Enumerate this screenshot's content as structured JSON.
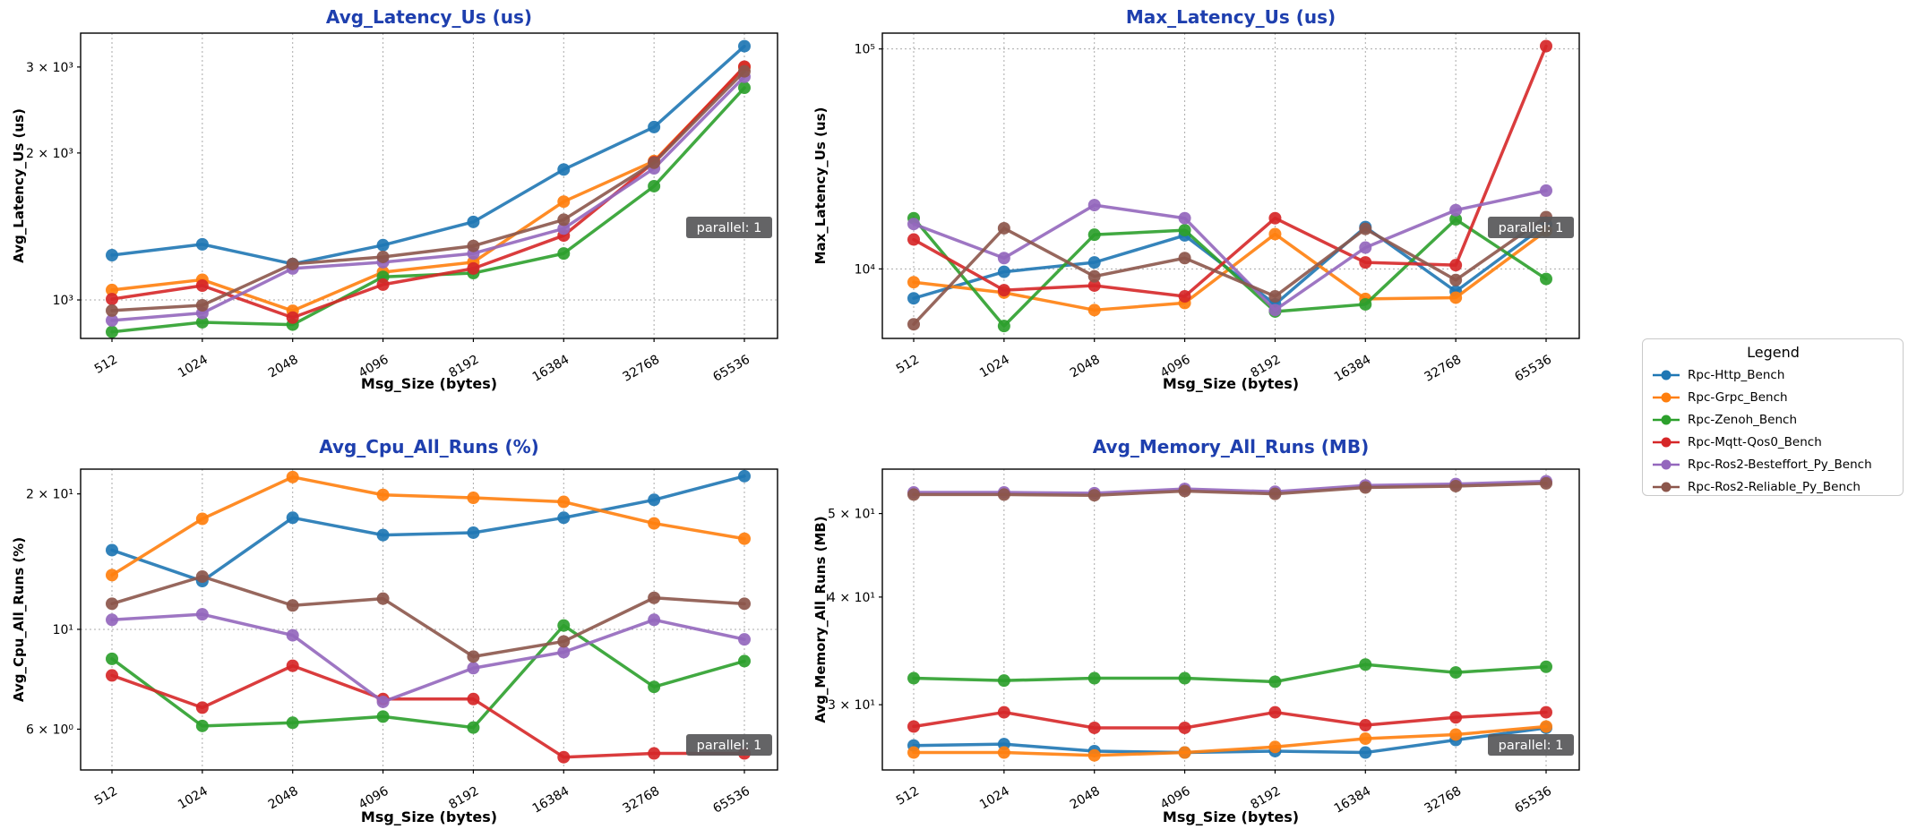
{
  "figure": {
    "background": "#ffffff",
    "title_color": "#1e3fae",
    "grid_color": "#aaaaaa",
    "spine_color": "#000000",
    "badge_bg": "#58585a",
    "badge_text_color": "#ffffff"
  },
  "legend": {
    "title": "Legend"
  },
  "annotation": {
    "label": "parallel: 1"
  },
  "series": [
    {
      "name": "Rpc-Http_Bench",
      "color": "#1f77b4"
    },
    {
      "name": "Rpc-Grpc_Bench",
      "color": "#ff7f0e"
    },
    {
      "name": "Rpc-Zenoh_Bench",
      "color": "#2ca02c"
    },
    {
      "name": "Rpc-Mqtt-Qos0_Bench",
      "color": "#d62728"
    },
    {
      "name": "Rpc-Ros2-Besteffort_Py_Bench",
      "color": "#9467bd"
    },
    {
      "name": "Rpc-Ros2-Reliable_Py_Bench",
      "color": "#8c564b"
    }
  ],
  "chart_data": [
    {
      "type": "line",
      "yscale": "log",
      "title": "Avg_Latency_Us  (us)",
      "ylabel": "Avg_Latency_Us (us)",
      "xlabel": "Msg_Size (bytes)",
      "categories": [
        "512",
        "1024",
        "2048",
        "4096",
        "8192",
        "16384",
        "32768",
        "65536"
      ],
      "ylim": [
        834,
        3520
      ],
      "yticks": [
        {
          "v": 1000,
          "label": "10³",
          "grid": true
        },
        {
          "v": 2000,
          "label": "2 × 10³",
          "grid": false
        },
        {
          "v": 3000,
          "label": "3 × 10³",
          "grid": false
        }
      ],
      "series": [
        {
          "name": "Rpc-Http_Bench",
          "values": [
            1235,
            1300,
            1185,
            1295,
            1445,
            1850,
            2260,
            3310
          ]
        },
        {
          "name": "Rpc-Grpc_Bench",
          "values": [
            1048,
            1100,
            950,
            1140,
            1195,
            1590,
            1925,
            2995
          ]
        },
        {
          "name": "Rpc-Zenoh_Bench",
          "values": [
            860,
            900,
            890,
            1115,
            1135,
            1245,
            1710,
            2720
          ]
        },
        {
          "name": "Rpc-Mqtt-Qos0_Bench",
          "values": [
            1004,
            1070,
            920,
            1075,
            1160,
            1355,
            1915,
            3005
          ]
        },
        {
          "name": "Rpc-Ros2-Besteffort_Py_Bench",
          "values": [
            908,
            940,
            1160,
            1195,
            1245,
            1400,
            1860,
            2865
          ]
        },
        {
          "name": "Rpc-Ros2-Reliable_Py_Bench",
          "values": [
            951,
            975,
            1185,
            1225,
            1290,
            1460,
            1910,
            2940
          ]
        }
      ]
    },
    {
      "type": "line",
      "yscale": "log",
      "title": "Max_Latency_Us  (us)",
      "ylabel": "Max_Latency_Us (us)",
      "xlabel": "Msg_Size (bytes)",
      "categories": [
        "512",
        "1024",
        "2048",
        "4096",
        "8192",
        "16384",
        "32768",
        "65536"
      ],
      "ylim": [
        4830,
        118000
      ],
      "yticks": [
        {
          "v": 10000,
          "label": "10⁴",
          "grid": true
        },
        {
          "v": 100000,
          "label": "10⁵",
          "grid": true
        }
      ],
      "series": [
        {
          "name": "Rpc-Http_Bench",
          "values": [
            7350,
            9700,
            10700,
            14200,
            6900,
            15500,
            7900,
            15900
          ]
        },
        {
          "name": "Rpc-Grpc_Bench",
          "values": [
            8700,
            7800,
            6500,
            7000,
            14400,
            7300,
            7400,
            14900
          ]
        },
        {
          "name": "Rpc-Zenoh_Bench",
          "values": [
            17000,
            5500,
            14300,
            15000,
            6400,
            6900,
            16800,
            9000
          ]
        },
        {
          "name": "Rpc-Mqtt-Qos0_Bench",
          "values": [
            13600,
            8000,
            8400,
            7500,
            17000,
            10700,
            10400,
            103000
          ]
        },
        {
          "name": "Rpc-Ros2-Besteffort_Py_Bench",
          "values": [
            16000,
            11200,
            19500,
            17000,
            6500,
            12500,
            18500,
            22700
          ]
        },
        {
          "name": "Rpc-Ros2-Reliable_Py_Bench",
          "values": [
            5600,
            15300,
            9250,
            11200,
            7500,
            15200,
            8900,
            17200
          ]
        }
      ]
    },
    {
      "type": "line",
      "yscale": "log",
      "title": "Avg_Cpu_All_Runs  (%)",
      "ylabel": "Avg_Cpu_All_Runs (%)",
      "xlabel": "Msg_Size (bytes)",
      "categories": [
        "512",
        "1024",
        "2048",
        "4096",
        "8192",
        "16384",
        "32768",
        "65536"
      ],
      "ylim": [
        4.87,
        22.7
      ],
      "yticks": [
        {
          "v": 6,
          "label": "6 × 10⁰",
          "grid": false
        },
        {
          "v": 10,
          "label": "10¹",
          "grid": true
        },
        {
          "v": 20,
          "label": "2 × 10¹",
          "grid": false
        }
      ],
      "series": [
        {
          "name": "Rpc-Http_Bench",
          "values": [
            15.0,
            12.8,
            17.7,
            16.2,
            16.4,
            17.7,
            19.4,
            21.9
          ]
        },
        {
          "name": "Rpc-Grpc_Bench",
          "values": [
            13.2,
            17.6,
            21.8,
            19.9,
            19.6,
            19.2,
            17.2,
            15.9
          ]
        },
        {
          "name": "Rpc-Zenoh_Bench",
          "values": [
            8.6,
            6.1,
            6.2,
            6.4,
            6.05,
            10.2,
            7.45,
            8.5
          ]
        },
        {
          "name": "Rpc-Mqtt-Qos0_Bench",
          "values": [
            7.9,
            6.7,
            8.3,
            7.0,
            7.0,
            5.2,
            5.3,
            5.3
          ]
        },
        {
          "name": "Rpc-Ros2-Besteffort_Py_Bench",
          "values": [
            10.5,
            10.8,
            9.7,
            6.9,
            8.2,
            8.9,
            10.5,
            9.5
          ]
        },
        {
          "name": "Rpc-Ros2-Reliable_Py_Bench",
          "values": [
            11.4,
            13.1,
            11.3,
            11.7,
            8.7,
            9.4,
            11.75,
            11.4
          ]
        }
      ]
    },
    {
      "type": "line",
      "yscale": "log",
      "title": "Avg_Memory_All_Runs  (MB)",
      "ylabel": "Avg_Memory_All_Runs (MB)",
      "xlabel": "Msg_Size (bytes)",
      "categories": [
        "512",
        "1024",
        "2048",
        "4096",
        "8192",
        "16384",
        "32768",
        "65536"
      ],
      "ylim": [
        25.2,
        56.3
      ],
      "yticks": [
        {
          "v": 30,
          "label": "3 × 10¹",
          "grid": false
        },
        {
          "v": 40,
          "label": "4 × 10¹",
          "grid": false
        },
        {
          "v": 50,
          "label": "5 × 10¹",
          "grid": false
        }
      ],
      "series": [
        {
          "name": "Rpc-Http_Bench",
          "values": [
            26.9,
            27.0,
            26.5,
            26.4,
            26.5,
            26.4,
            27.3,
            28.2
          ]
        },
        {
          "name": "Rpc-Grpc_Bench",
          "values": [
            26.4,
            26.4,
            26.2,
            26.4,
            26.8,
            27.4,
            27.7,
            28.3
          ]
        },
        {
          "name": "Rpc-Zenoh_Bench",
          "values": [
            32.2,
            32.0,
            32.2,
            32.2,
            31.9,
            33.4,
            32.7,
            33.2
          ]
        },
        {
          "name": "Rpc-Mqtt-Qos0_Bench",
          "values": [
            28.3,
            29.4,
            28.2,
            28.2,
            29.4,
            28.4,
            29.0,
            29.4
          ]
        },
        {
          "name": "Rpc-Ros2-Besteffort_Py_Bench",
          "values": [
            52.9,
            52.9,
            52.8,
            53.4,
            53.0,
            53.9,
            54.1,
            54.5
          ]
        },
        {
          "name": "Rpc-Ros2-Reliable_Py_Bench",
          "values": [
            52.6,
            52.6,
            52.5,
            53.1,
            52.7,
            53.6,
            53.8,
            54.2
          ]
        }
      ]
    }
  ]
}
